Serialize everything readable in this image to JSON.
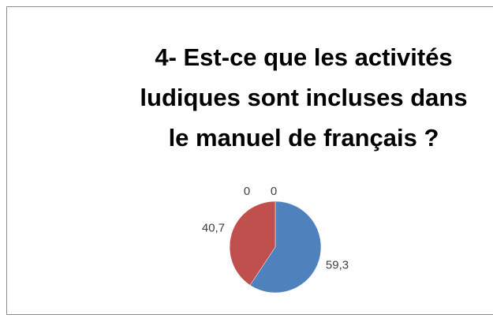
{
  "chart_data": {
    "type": "pie",
    "title_lines": [
      "4- Est-ce que les activités",
      "ludiques sont incluses dans",
      "le manuel de français ?"
    ],
    "values": [
      59.3,
      40.7,
      0,
      0
    ],
    "value_labels": [
      "59,3",
      "40,7",
      "0",
      "0"
    ],
    "colors": [
      "#4f81bd",
      "#c0504d",
      "#9bbb59",
      "#8064a2"
    ]
  }
}
